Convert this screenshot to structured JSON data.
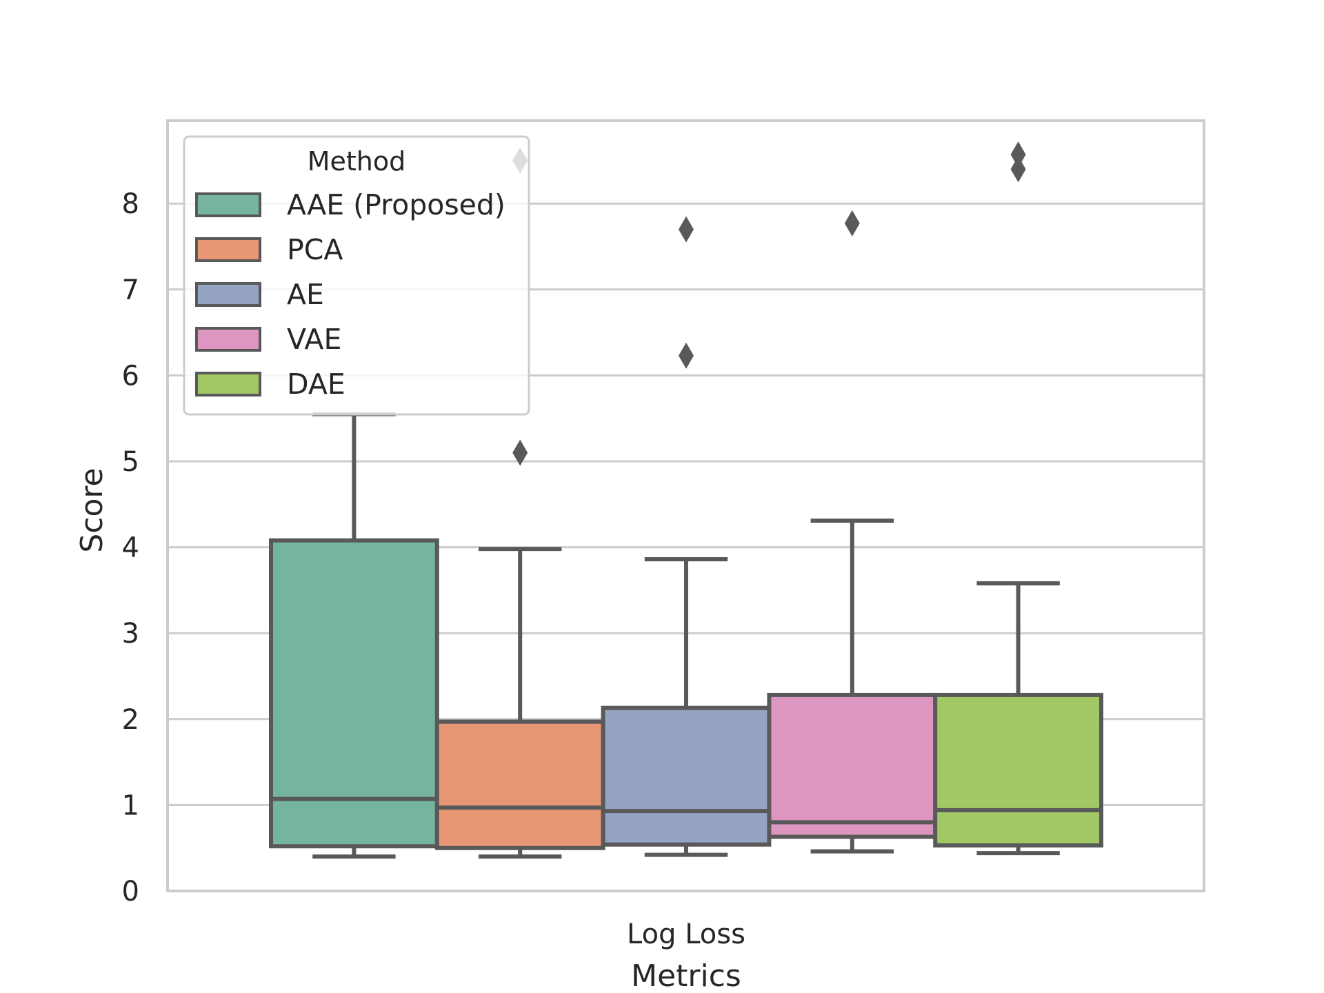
{
  "chart_data": {
    "type": "box",
    "xlabel": "Metrics",
    "ylabel": "Score",
    "categories": [
      "Log Loss"
    ],
    "ylim": [
      0,
      8.95
    ],
    "yticks": [
      0,
      1,
      2,
      3,
      4,
      5,
      6,
      7,
      8
    ],
    "grid": true,
    "legend": {
      "title": "Method",
      "placement": "top-left"
    },
    "series": [
      {
        "name": "AAE (Proposed)",
        "color": "#75b59e",
        "whisker_low": 0.4,
        "q1": 0.52,
        "median": 1.07,
        "q3": 4.08,
        "whisker_high": 5.55,
        "outliers": []
      },
      {
        "name": "PCA",
        "color": "#e89775",
        "whisker_low": 0.4,
        "q1": 0.5,
        "median": 0.97,
        "q3": 1.97,
        "whisker_high": 3.98,
        "outliers": [
          5.1,
          8.5
        ]
      },
      {
        "name": "AE",
        "color": "#95a4c3",
        "whisker_low": 0.42,
        "q1": 0.54,
        "median": 0.93,
        "q3": 2.13,
        "whisker_high": 3.86,
        "outliers": [
          6.23,
          7.7
        ]
      },
      {
        "name": "VAE",
        "color": "#dc96c0",
        "whisker_low": 0.46,
        "q1": 0.63,
        "median": 0.8,
        "q3": 2.28,
        "whisker_high": 4.31,
        "outliers": [
          7.77
        ]
      },
      {
        "name": "DAE",
        "color": "#a2c866",
        "whisker_low": 0.44,
        "q1": 0.53,
        "median": 0.94,
        "q3": 2.28,
        "whisker_high": 3.58,
        "outliers": [
          8.4,
          8.57
        ]
      }
    ]
  }
}
